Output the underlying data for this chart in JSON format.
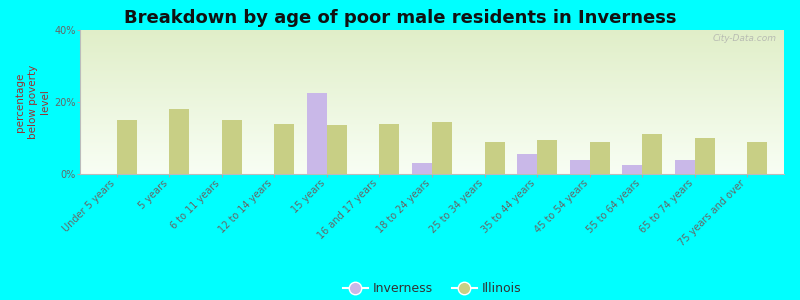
{
  "title": "Breakdown by age of poor male residents in Inverness",
  "categories": [
    "Under 5 years",
    "5 years",
    "6 to 11 years",
    "12 to 14 years",
    "15 years",
    "16 and 17 years",
    "18 to 24 years",
    "25 to 34 years",
    "35 to 44 years",
    "45 to 54 years",
    "55 to 64 years",
    "65 to 74 years",
    "75 years and over"
  ],
  "inverness_values": [
    0,
    0,
    0,
    0,
    22.5,
    0,
    3.0,
    0,
    5.5,
    4.0,
    2.5,
    4.0,
    0
  ],
  "illinois_values": [
    15.0,
    18.0,
    15.0,
    14.0,
    13.5,
    14.0,
    14.5,
    9.0,
    9.5,
    9.0,
    11.0,
    10.0,
    9.0
  ],
  "inverness_color": "#c9b8e8",
  "illinois_color": "#c8cf85",
  "ylabel": "percentage\nbelow poverty\nlevel",
  "ylim": [
    0,
    40
  ],
  "yticks": [
    0,
    20,
    40
  ],
  "ytick_labels": [
    "0%",
    "20%",
    "40%"
  ],
  "bg_top_color": "#e8f2d8",
  "bg_bottom_color": "#f8fef8",
  "outer_bg": "#00ffff",
  "title_fontsize": 13,
  "axis_label_fontsize": 7.5,
  "tick_fontsize": 7,
  "bar_width": 0.38,
  "watermark": "City-Data.com"
}
